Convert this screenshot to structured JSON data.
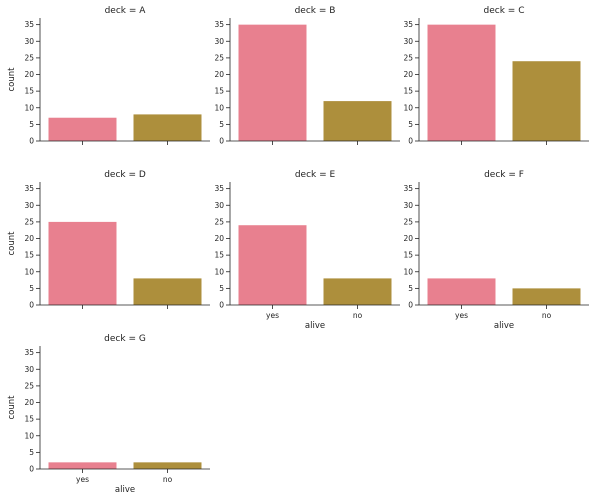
{
  "chart_data": {
    "type": "bar",
    "facet_var": "deck",
    "title_prefix": "deck = ",
    "xlabel": "alive",
    "ylabel": "count",
    "categories": [
      "yes",
      "no"
    ],
    "colors": [
      "#e8808f",
      "#ad8f3c"
    ],
    "ylim": [
      0,
      37
    ],
    "yticks": [
      0,
      5,
      10,
      15,
      20,
      25,
      30,
      35
    ],
    "panels": [
      {
        "deck": "A",
        "values": [
          7,
          8
        ]
      },
      {
        "deck": "B",
        "values": [
          35,
          12
        ]
      },
      {
        "deck": "C",
        "values": [
          35,
          24
        ]
      },
      {
        "deck": "D",
        "values": [
          25,
          8
        ]
      },
      {
        "deck": "E",
        "values": [
          24,
          8
        ]
      },
      {
        "deck": "F",
        "values": [
          8,
          5
        ]
      },
      {
        "deck": "G",
        "values": [
          2,
          2
        ]
      }
    ]
  }
}
